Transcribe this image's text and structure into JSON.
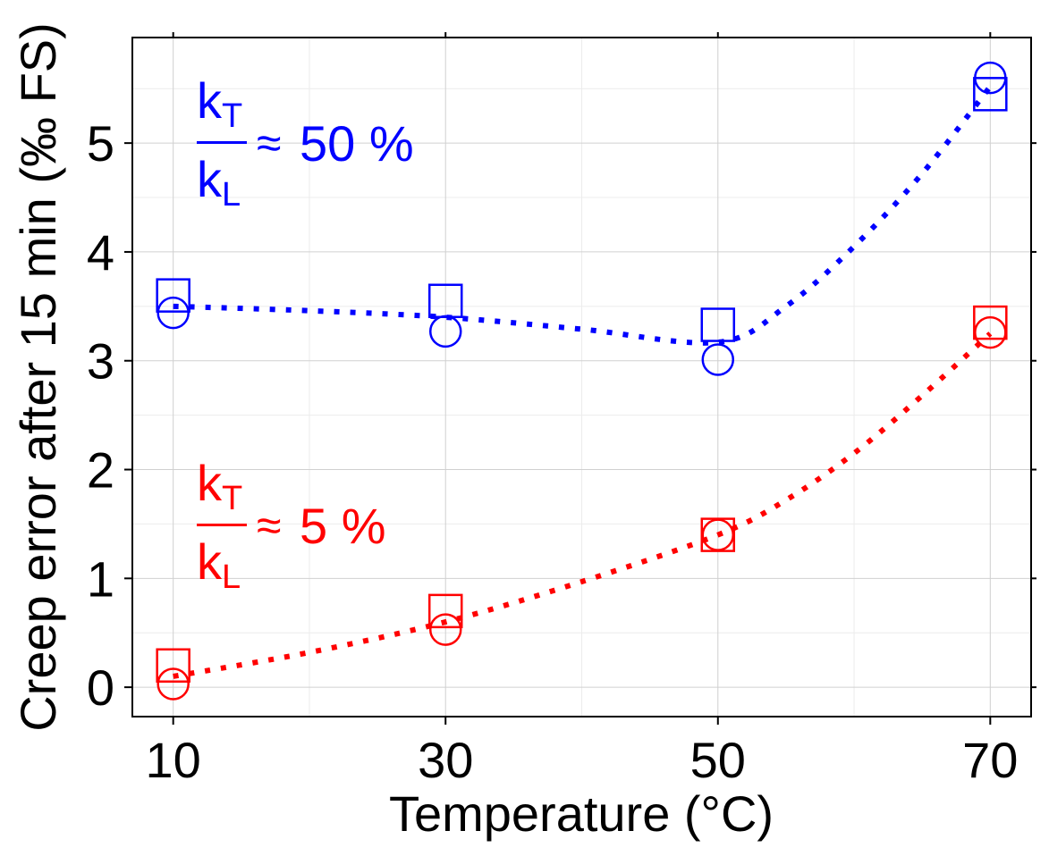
{
  "chart_data": {
    "type": "scatter",
    "xlabel": "Temperature (°C)",
    "ylabel": "Creep error after 15 min (‰ FS)",
    "xlim": [
      7,
      73
    ],
    "ylim": [
      -0.27,
      5.97
    ],
    "x_ticks": [
      10,
      30,
      50,
      70
    ],
    "x_tick_labels": [
      "10",
      "30",
      "50",
      "70"
    ],
    "x_minor_grid": [
      20,
      40,
      60
    ],
    "y_ticks": [
      0,
      1,
      2,
      3,
      4,
      5
    ],
    "y_tick_labels": [
      "0",
      "1",
      "2",
      "3",
      "4",
      "5"
    ],
    "y_minor_grid": [
      0.5,
      1.5,
      2.5,
      3.5,
      4.5,
      5.5
    ],
    "grid": true,
    "series": [
      {
        "name": "kT/kL ≈ 50 %",
        "color": "#0000ff",
        "squares": [
          {
            "x": 10,
            "y": 3.6
          },
          {
            "x": 30,
            "y": 3.55
          },
          {
            "x": 50,
            "y": 3.33
          },
          {
            "x": 70,
            "y": 5.45
          }
        ],
        "circles": [
          {
            "x": 10,
            "y": 3.44
          },
          {
            "x": 30,
            "y": 3.27
          },
          {
            "x": 50,
            "y": 3.01
          },
          {
            "x": 70,
            "y": 5.6
          }
        ],
        "fit": [
          {
            "x": 10,
            "y": 3.5
          },
          {
            "x": 20,
            "y": 3.46
          },
          {
            "x": 30,
            "y": 3.4
          },
          {
            "x": 40,
            "y": 3.29
          },
          {
            "x": 50,
            "y": 3.17
          },
          {
            "x": 55,
            "y": 3.5
          },
          {
            "x": 60,
            "y": 4.05
          },
          {
            "x": 65,
            "y": 4.72
          },
          {
            "x": 70,
            "y": 5.52
          }
        ]
      },
      {
        "name": "kT/kL ≈ 5 %",
        "color": "#ff0000",
        "squares": [
          {
            "x": 10,
            "y": 0.2
          },
          {
            "x": 30,
            "y": 0.7
          },
          {
            "x": 50,
            "y": 1.4
          },
          {
            "x": 70,
            "y": 3.35
          }
        ],
        "circles": [
          {
            "x": 10,
            "y": 0.03
          },
          {
            "x": 30,
            "y": 0.53
          },
          {
            "x": 50,
            "y": 1.4
          },
          {
            "x": 70,
            "y": 3.26
          }
        ],
        "fit": [
          {
            "x": 10,
            "y": 0.1
          },
          {
            "x": 20,
            "y": 0.32
          },
          {
            "x": 30,
            "y": 0.6
          },
          {
            "x": 40,
            "y": 0.97
          },
          {
            "x": 50,
            "y": 1.4
          },
          {
            "x": 55,
            "y": 1.72
          },
          {
            "x": 60,
            "y": 2.15
          },
          {
            "x": 65,
            "y": 2.68
          },
          {
            "x": 70,
            "y": 3.25
          }
        ]
      }
    ],
    "annotations": [
      {
        "numerator": "k",
        "numerator_sub": "T",
        "denominator": "k",
        "denominator_sub": "L",
        "approx": "≈",
        "value": "50 %",
        "color": "#0000ff"
      },
      {
        "numerator": "k",
        "numerator_sub": "T",
        "denominator": "k",
        "denominator_sub": "L",
        "approx": "≈",
        "value": "5 %",
        "color": "#ff0000"
      }
    ]
  }
}
